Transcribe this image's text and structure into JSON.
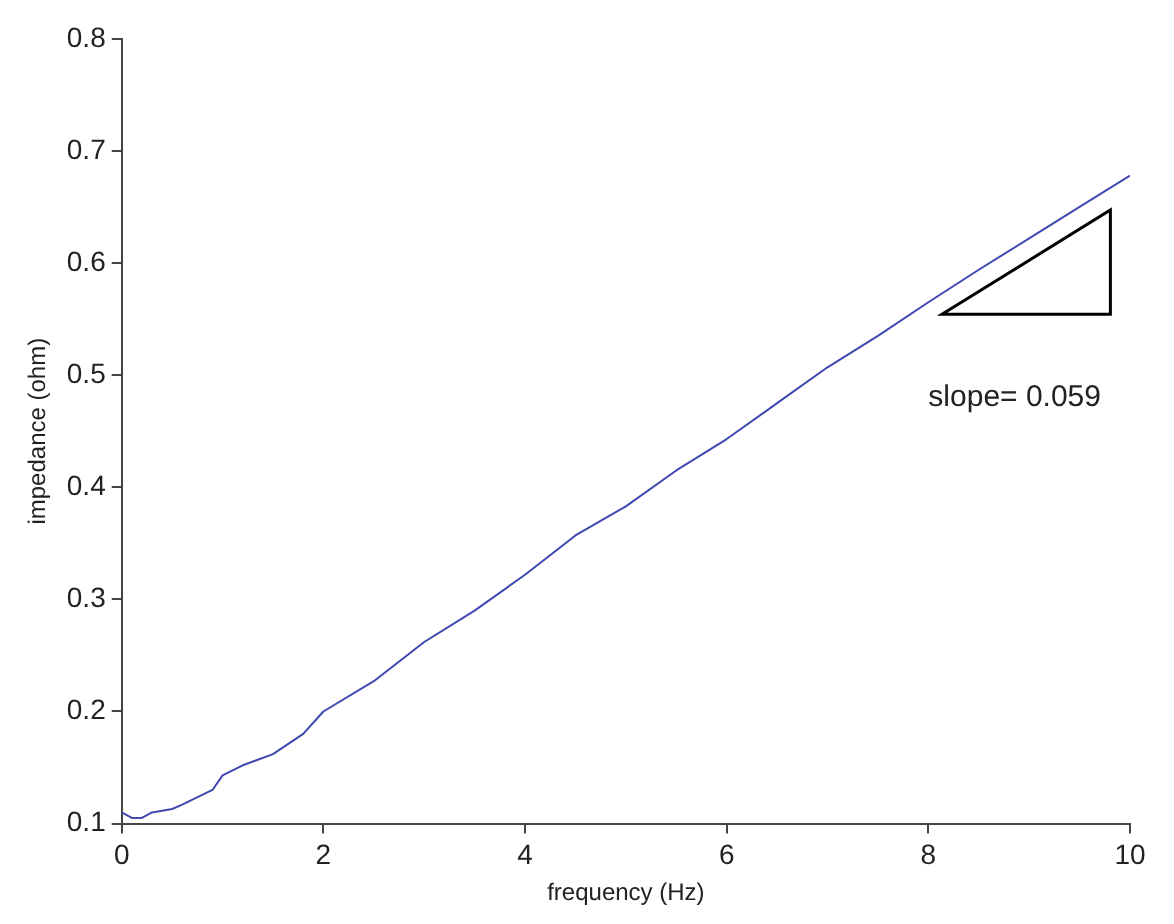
{
  "chart_data": {
    "type": "line",
    "xlabel": "frequency (Hz)",
    "ylabel": "impedance (ohm)",
    "annotations": [
      "slope= 0.059"
    ],
    "xlim": [
      0,
      10
    ],
    "xticks": [
      0,
      2,
      4,
      6,
      8,
      10
    ],
    "ylim": [
      0.1,
      0.8
    ],
    "yticks": [
      0.1,
      0.2,
      0.3,
      0.4,
      0.5,
      0.6,
      0.7,
      0.8
    ],
    "grid": false,
    "legend": false,
    "marker": "none",
    "line_style": "solid",
    "series": [
      {
        "color": "#3f48b0",
        "x": [
          0,
          0.1,
          0.2,
          0.3,
          0.5,
          0.6,
          0.9,
          1.0,
          1.2,
          1.5,
          1.8,
          2.0,
          2.5,
          3,
          3.5,
          4,
          4.5,
          5,
          5.5,
          6,
          6.5,
          7,
          7.5,
          8,
          8.5,
          9,
          9.5,
          10
        ],
        "values": [
          0.11,
          0.105,
          0.105,
          0.11,
          0.113,
          0.117,
          0.13,
          0.143,
          0.152,
          0.162,
          0.18,
          0.2,
          0.227,
          0.262,
          0.29,
          0.322,
          0.357,
          0.383,
          0.415,
          0.443,
          0.475,
          0.507,
          0.535,
          0.565,
          0.594,
          0.622,
          0.65,
          0.678
        ]
      }
    ]
  }
}
